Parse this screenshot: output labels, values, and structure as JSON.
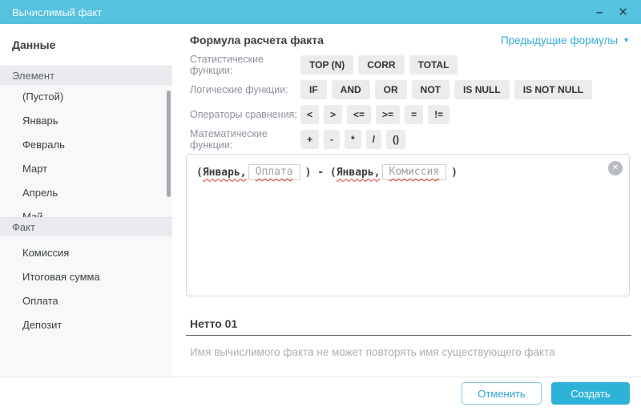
{
  "window": {
    "title": "Вычислимый факт",
    "controls": {
      "minimize_glyph": "–",
      "close_glyph": "✕"
    }
  },
  "colors": {
    "titlebar": "#55C2E0",
    "accent": "#2CB3D7",
    "link": "#36ADD2",
    "spellcheck_underline": "#E0352B",
    "button_gray": "#ECECEC"
  },
  "sidebar": {
    "title": "Данные",
    "sections": [
      {
        "label": "Элемент",
        "items": [
          "(Пустой)",
          "Январь",
          "Февраль",
          "Март",
          "Апрель",
          "Май"
        ]
      },
      {
        "label": "Факт",
        "items": [
          "Комиссия",
          "Итоговая сумма",
          "Оплата",
          "Депозит"
        ]
      }
    ]
  },
  "main": {
    "title": "Формула расчета факта",
    "previous_formulas": {
      "label": "Предыдущие формулы",
      "arrow_glyph": "▼"
    },
    "function_rows": [
      {
        "label": "Статистические функции:",
        "buttons": [
          "TOP (N)",
          "CORR",
          "TOTAL"
        ]
      },
      {
        "label": "Логические функции:",
        "buttons": [
          "IF",
          "AND",
          "OR",
          "NOT",
          "IS NULL",
          "IS NOT NULL"
        ]
      },
      {
        "label": "Операторы сравнения:",
        "buttons": [
          "<",
          ">",
          "<=",
          ">=",
          "=",
          "!="
        ]
      },
      {
        "label": "Математические функции:",
        "buttons": [
          "+",
          "-",
          "*",
          "/",
          "()"
        ]
      }
    ],
    "formula_parts": [
      {
        "style": "plain",
        "text": "("
      },
      {
        "style": "wavy",
        "text": "Январь,"
      },
      {
        "style": "tag",
        "text": "Оплата"
      },
      {
        "style": "plain",
        "text": ") - ("
      },
      {
        "style": "wavy",
        "text": "Январь,"
      },
      {
        "style": "tag",
        "text": "Комиссия"
      },
      {
        "style": "plain",
        "text": ")"
      }
    ],
    "formula_clear_glyph": "✕",
    "name_input": {
      "value": "Нетто 01"
    },
    "helper_text": "Имя вычислимого факта не может повторять имя существующего факта"
  },
  "footer": {
    "cancel_label": "Отменить",
    "create_label": "Создать"
  }
}
